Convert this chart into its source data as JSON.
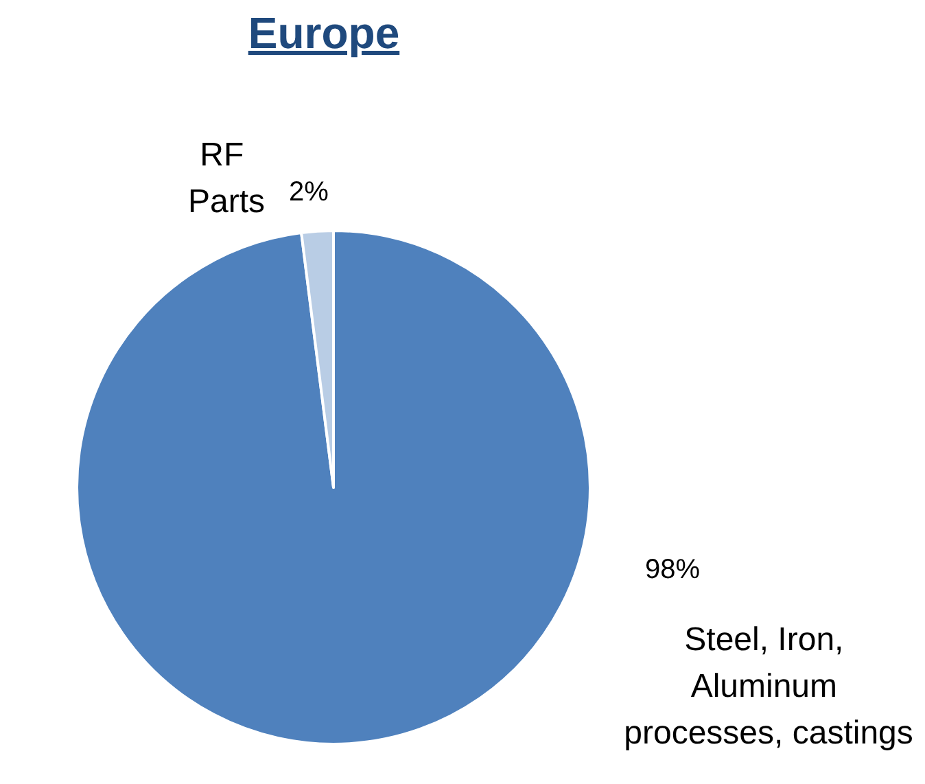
{
  "chart_data": {
    "type": "pie",
    "title": "Europe",
    "categories": [
      "Steel, Iron, Aluminum processes, castings",
      "RF Parts"
    ],
    "values": [
      98,
      2
    ],
    "colors": [
      "#4f81bd",
      "#b9cde5"
    ],
    "value_labels": [
      "98%",
      "2%"
    ],
    "legend": false
  }
}
